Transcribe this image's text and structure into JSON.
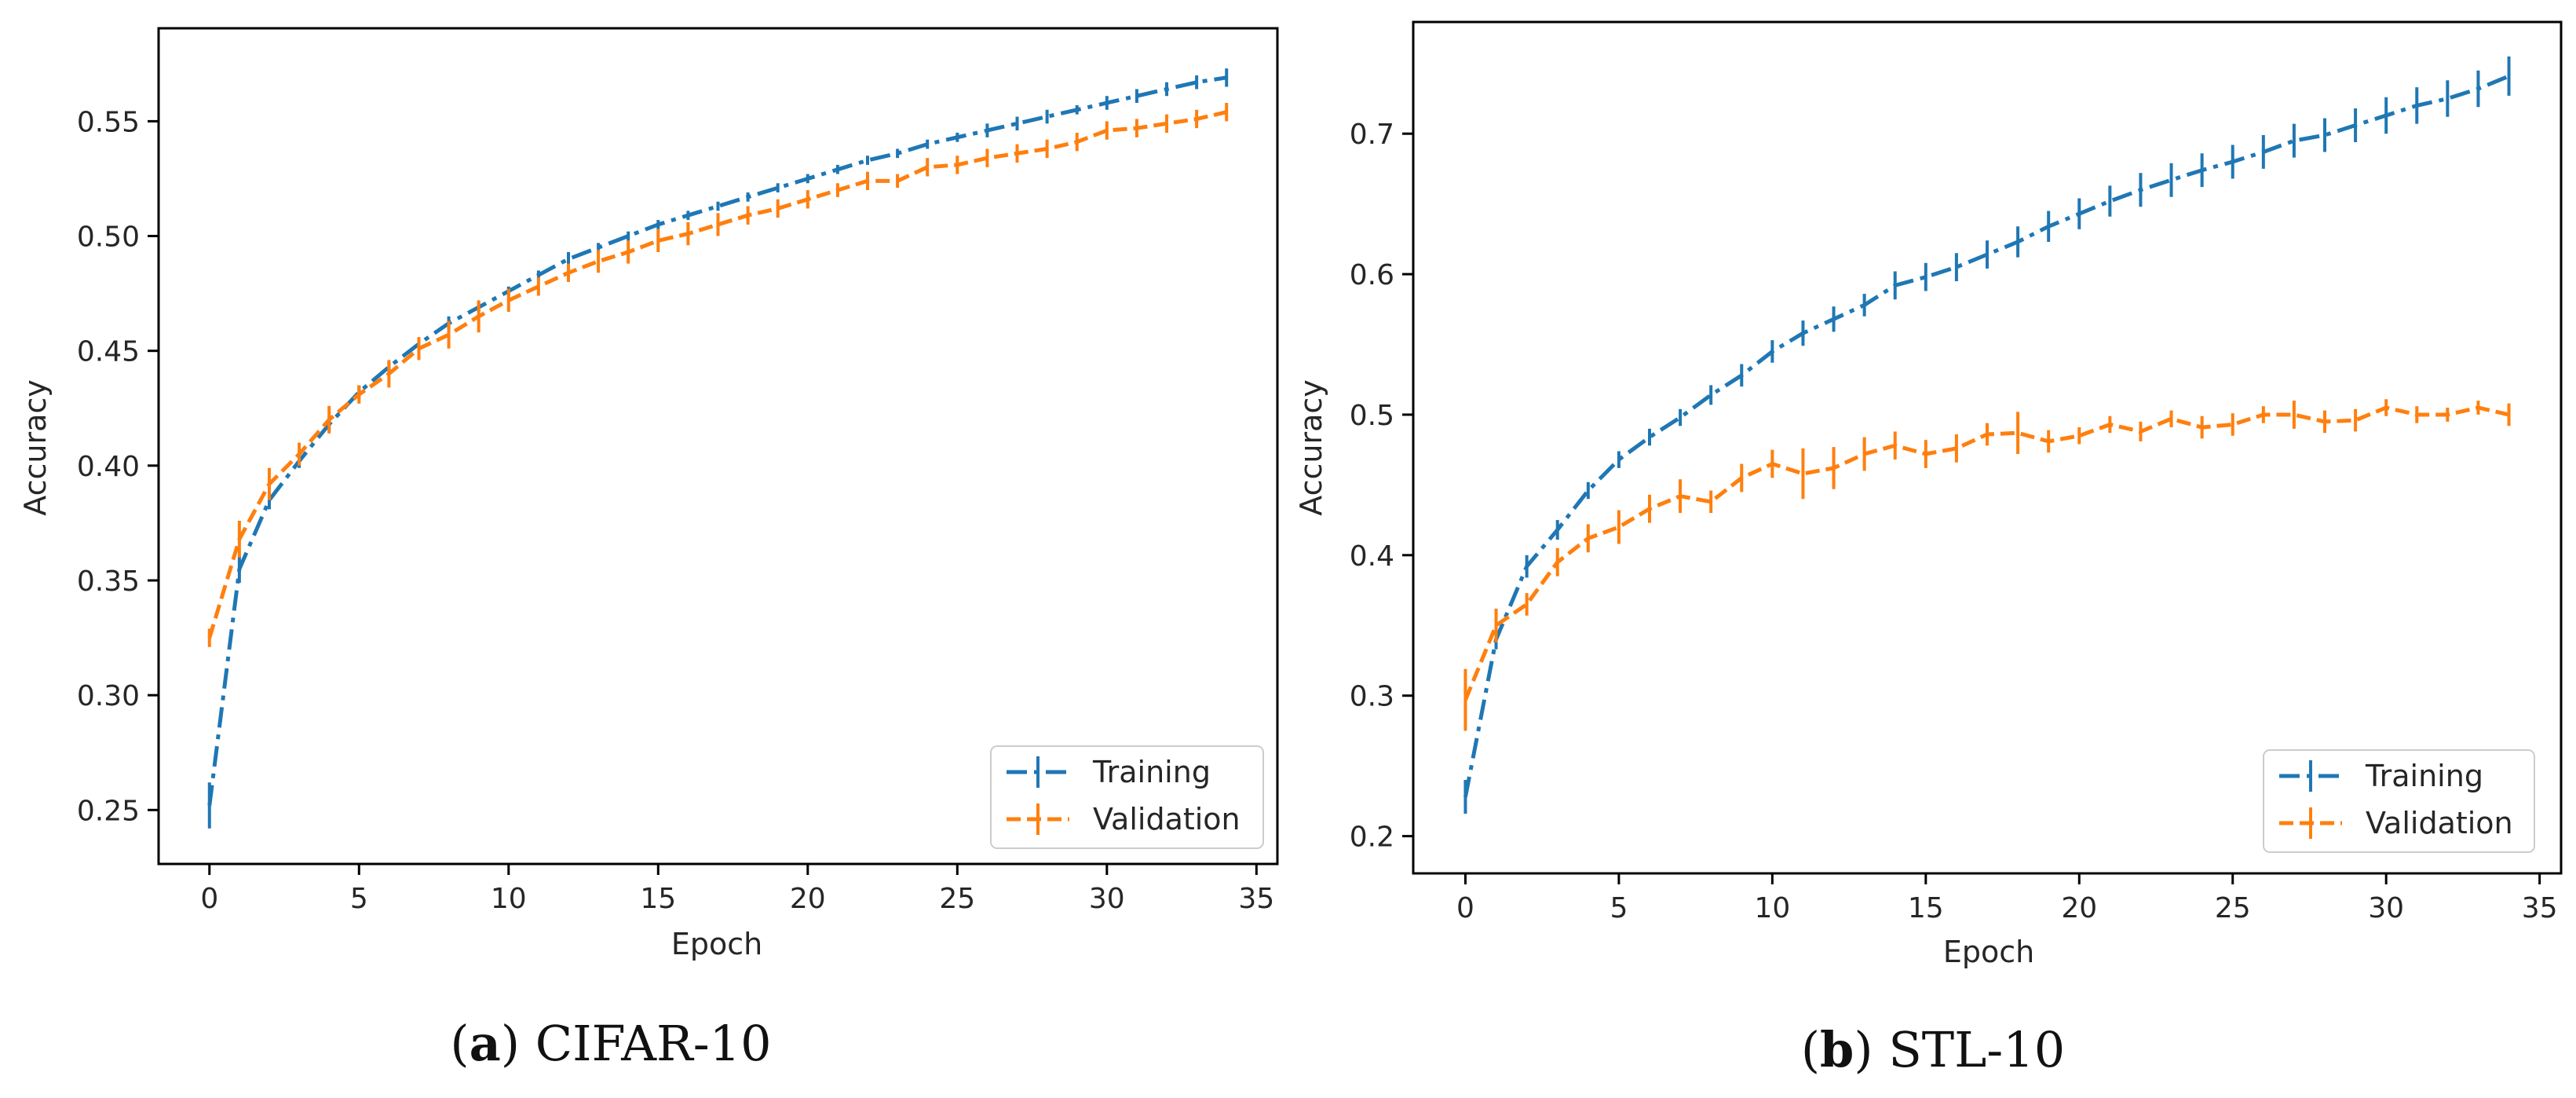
{
  "colors": {
    "training": "#1f77b4",
    "validation": "#ff7f0e",
    "axis": "#000000"
  },
  "chart_data": [
    {
      "type": "line",
      "panel": "a",
      "caption_letter": "a",
      "caption_text": "CIFAR-10",
      "xlabel": "Epoch",
      "ylabel": "Accuracy",
      "xlim": [
        -1.7,
        35.7
      ],
      "ylim": [
        0.2265,
        0.5905
      ],
      "xticks": [
        0,
        5,
        10,
        15,
        20,
        25,
        30,
        35
      ],
      "yticks": [
        0.25,
        0.3,
        0.35,
        0.4,
        0.45,
        0.5,
        0.55
      ],
      "yticks_labels": [
        "0.25",
        "0.30",
        "0.35",
        "0.40",
        "0.45",
        "0.50",
        "0.55"
      ],
      "legend_position": "lower-right",
      "x": [
        0,
        1,
        2,
        3,
        4,
        5,
        6,
        7,
        8,
        9,
        10,
        11,
        12,
        13,
        14,
        15,
        16,
        17,
        18,
        19,
        20,
        21,
        22,
        23,
        24,
        25,
        26,
        27,
        28,
        29,
        30,
        31,
        32,
        33,
        34
      ],
      "series": [
        {
          "name": "Training",
          "style": "dashdot",
          "values": [
            0.252,
            0.355,
            0.385,
            0.402,
            0.418,
            0.432,
            0.443,
            0.453,
            0.462,
            0.469,
            0.476,
            0.483,
            0.49,
            0.495,
            0.5,
            0.505,
            0.509,
            0.513,
            0.517,
            0.521,
            0.525,
            0.529,
            0.533,
            0.536,
            0.54,
            0.543,
            0.546,
            0.549,
            0.552,
            0.555,
            0.558,
            0.561,
            0.564,
            0.567,
            0.569
          ],
          "errors": [
            0.01,
            0.006,
            0.004,
            0.003,
            0.003,
            0.003,
            0.002,
            0.002,
            0.003,
            0.002,
            0.002,
            0.002,
            0.003,
            0.002,
            0.002,
            0.002,
            0.002,
            0.002,
            0.002,
            0.002,
            0.002,
            0.002,
            0.002,
            0.002,
            0.002,
            0.002,
            0.003,
            0.003,
            0.003,
            0.002,
            0.003,
            0.003,
            0.003,
            0.003,
            0.004
          ]
        },
        {
          "name": "Validation",
          "style": "dashed",
          "values": [
            0.325,
            0.368,
            0.392,
            0.405,
            0.42,
            0.431,
            0.44,
            0.451,
            0.457,
            0.465,
            0.472,
            0.478,
            0.484,
            0.489,
            0.493,
            0.498,
            0.501,
            0.505,
            0.509,
            0.512,
            0.516,
            0.52,
            0.524,
            0.524,
            0.53,
            0.531,
            0.534,
            0.536,
            0.538,
            0.541,
            0.546,
            0.547,
            0.549,
            0.551,
            0.554
          ],
          "errors": [
            0.004,
            0.008,
            0.007,
            0.005,
            0.006,
            0.004,
            0.006,
            0.005,
            0.006,
            0.007,
            0.005,
            0.004,
            0.004,
            0.005,
            0.005,
            0.005,
            0.005,
            0.005,
            0.004,
            0.004,
            0.004,
            0.003,
            0.004,
            0.003,
            0.004,
            0.004,
            0.004,
            0.004,
            0.004,
            0.004,
            0.004,
            0.004,
            0.004,
            0.004,
            0.004
          ]
        }
      ]
    },
    {
      "type": "line",
      "panel": "b",
      "caption_letter": "b",
      "caption_text": "STL-10",
      "xlabel": "Epoch",
      "ylabel": "Accuracy",
      "xlim": [
        -1.7,
        35.7
      ],
      "ylim": [
        0.1735,
        0.7795
      ],
      "xticks": [
        0,
        5,
        10,
        15,
        20,
        25,
        30,
        35
      ],
      "yticks": [
        0.2,
        0.3,
        0.4,
        0.5,
        0.6,
        0.7
      ],
      "yticks_labels": [
        "0.2",
        "0.3",
        "0.4",
        "0.5",
        "0.6",
        "0.7"
      ],
      "legend_position": "lower-right",
      "x": [
        0,
        1,
        2,
        3,
        4,
        5,
        6,
        7,
        8,
        9,
        10,
        11,
        12,
        13,
        14,
        15,
        16,
        17,
        18,
        19,
        20,
        21,
        22,
        23,
        24,
        25,
        26,
        27,
        28,
        29,
        30,
        31,
        32,
        33,
        34
      ],
      "series": [
        {
          "name": "Training",
          "style": "dashdot",
          "values": [
            0.228,
            0.34,
            0.392,
            0.418,
            0.446,
            0.468,
            0.484,
            0.498,
            0.514,
            0.528,
            0.545,
            0.558,
            0.568,
            0.578,
            0.592,
            0.598,
            0.605,
            0.614,
            0.623,
            0.634,
            0.643,
            0.652,
            0.66,
            0.667,
            0.674,
            0.68,
            0.687,
            0.695,
            0.699,
            0.706,
            0.713,
            0.72,
            0.725,
            0.732,
            0.741
          ],
          "errors": [
            0.012,
            0.007,
            0.008,
            0.007,
            0.006,
            0.006,
            0.006,
            0.006,
            0.007,
            0.008,
            0.008,
            0.009,
            0.009,
            0.008,
            0.01,
            0.01,
            0.01,
            0.01,
            0.011,
            0.011,
            0.011,
            0.011,
            0.012,
            0.012,
            0.012,
            0.012,
            0.012,
            0.012,
            0.012,
            0.012,
            0.013,
            0.013,
            0.013,
            0.013,
            0.014
          ]
        },
        {
          "name": "Validation",
          "style": "dashed",
          "values": [
            0.297,
            0.35,
            0.365,
            0.395,
            0.412,
            0.42,
            0.433,
            0.442,
            0.438,
            0.455,
            0.465,
            0.458,
            0.462,
            0.472,
            0.478,
            0.472,
            0.476,
            0.486,
            0.487,
            0.481,
            0.485,
            0.493,
            0.488,
            0.497,
            0.491,
            0.493,
            0.5,
            0.5,
            0.495,
            0.496,
            0.505,
            0.5,
            0.5,
            0.505,
            0.5
          ],
          "errors": [
            0.022,
            0.012,
            0.008,
            0.01,
            0.01,
            0.012,
            0.01,
            0.012,
            0.008,
            0.01,
            0.01,
            0.018,
            0.015,
            0.012,
            0.01,
            0.01,
            0.01,
            0.008,
            0.015,
            0.008,
            0.006,
            0.006,
            0.007,
            0.006,
            0.008,
            0.008,
            0.006,
            0.01,
            0.008,
            0.008,
            0.006,
            0.006,
            0.005,
            0.005,
            0.008
          ]
        }
      ]
    }
  ]
}
